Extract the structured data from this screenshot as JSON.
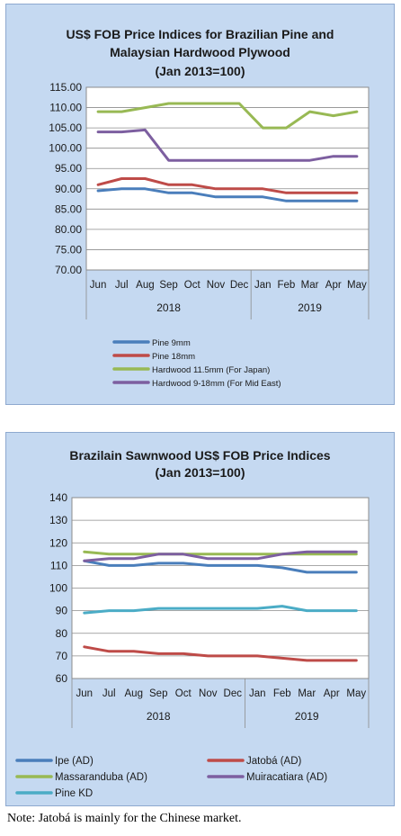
{
  "chart_data": [
    {
      "type": "line",
      "title_lines": [
        "US$ FOB Price Indices for Brazilian Pine and",
        "Malaysian Hardwood Plywood",
        "(Jan 2013=100)"
      ],
      "categories": [
        "Jun",
        "Jul",
        "Aug",
        "Sep",
        "Oct",
        "Nov",
        "Dec",
        "Jan",
        "Feb",
        "Mar",
        "Apr",
        "May"
      ],
      "year_groups": [
        {
          "label": "2018",
          "span": 7
        },
        {
          "label": "2019",
          "span": 5
        }
      ],
      "ylim": [
        70,
        115
      ],
      "y_ticks": [
        "70.00",
        "75.00",
        "80.00",
        "85.00",
        "90.00",
        "95.00",
        "100.00",
        "105.00",
        "110.00",
        "115.00"
      ],
      "grid": true,
      "legend_position": "bottom",
      "series": [
        {
          "name": "Pine 9mm",
          "color": "#4a7ebb",
          "values": [
            89.5,
            90,
            90,
            89,
            89,
            88,
            88,
            88,
            87,
            87,
            87,
            87
          ]
        },
        {
          "name": "Pine 18mm",
          "color": "#be4b48",
          "values": [
            91,
            92.5,
            92.5,
            91,
            91,
            90,
            90,
            90,
            89,
            89,
            89,
            89
          ]
        },
        {
          "name": "Hardwood 11.5mm (For Japan)",
          "color": "#98b954",
          "values": [
            109,
            109,
            110,
            111,
            111,
            111,
            111,
            105,
            105,
            109,
            108,
            109
          ]
        },
        {
          "name": "Hardwood 9-18mm (For Mid East)",
          "color": "#7d5fa0",
          "values": [
            104,
            104,
            104.5,
            97,
            97,
            97,
            97,
            97,
            97,
            97,
            98,
            98
          ]
        }
      ]
    },
    {
      "type": "line",
      "title_lines": [
        "Brazilain Sawnwood US$ FOB Price Indices",
        "(Jan 2013=100)"
      ],
      "categories": [
        "Jun",
        "Jul",
        "Aug",
        "Sep",
        "Oct",
        "Nov",
        "Dec",
        "Jan",
        "Feb",
        "Mar",
        "Apr",
        "May"
      ],
      "year_groups": [
        {
          "label": "2018",
          "span": 7
        },
        {
          "label": "2019",
          "span": 5
        }
      ],
      "ylim": [
        60,
        140
      ],
      "y_ticks": [
        "60",
        "70",
        "80",
        "90",
        "100",
        "110",
        "120",
        "130",
        "140"
      ],
      "grid": true,
      "legend_position": "bottom",
      "series": [
        {
          "name": "Ipe (AD)",
          "color": "#4a7ebb",
          "values": [
            112,
            110,
            110,
            111,
            111,
            110,
            110,
            110,
            109,
            107,
            107,
            107
          ]
        },
        {
          "name": "Jatobá (AD)",
          "color": "#be4b48",
          "values": [
            74,
            72,
            72,
            71,
            71,
            70,
            70,
            70,
            69,
            68,
            68,
            68
          ]
        },
        {
          "name": "Massaranduba (AD)",
          "color": "#98b954",
          "values": [
            116,
            115,
            115,
            115,
            115,
            115,
            115,
            115,
            115,
            115,
            115,
            115
          ]
        },
        {
          "name": "Muiracatiara (AD)",
          "color": "#7d5fa0",
          "values": [
            112,
            113,
            113,
            115,
            115,
            113,
            113,
            113,
            115,
            116,
            116,
            116
          ]
        },
        {
          "name": "Pine KD",
          "color": "#4bacc6",
          "values": [
            89,
            90,
            90,
            91,
            91,
            91,
            91,
            91,
            92,
            90,
            90,
            90
          ]
        }
      ]
    }
  ],
  "note": "Note: Jatobá is mainly for the Chinese market."
}
